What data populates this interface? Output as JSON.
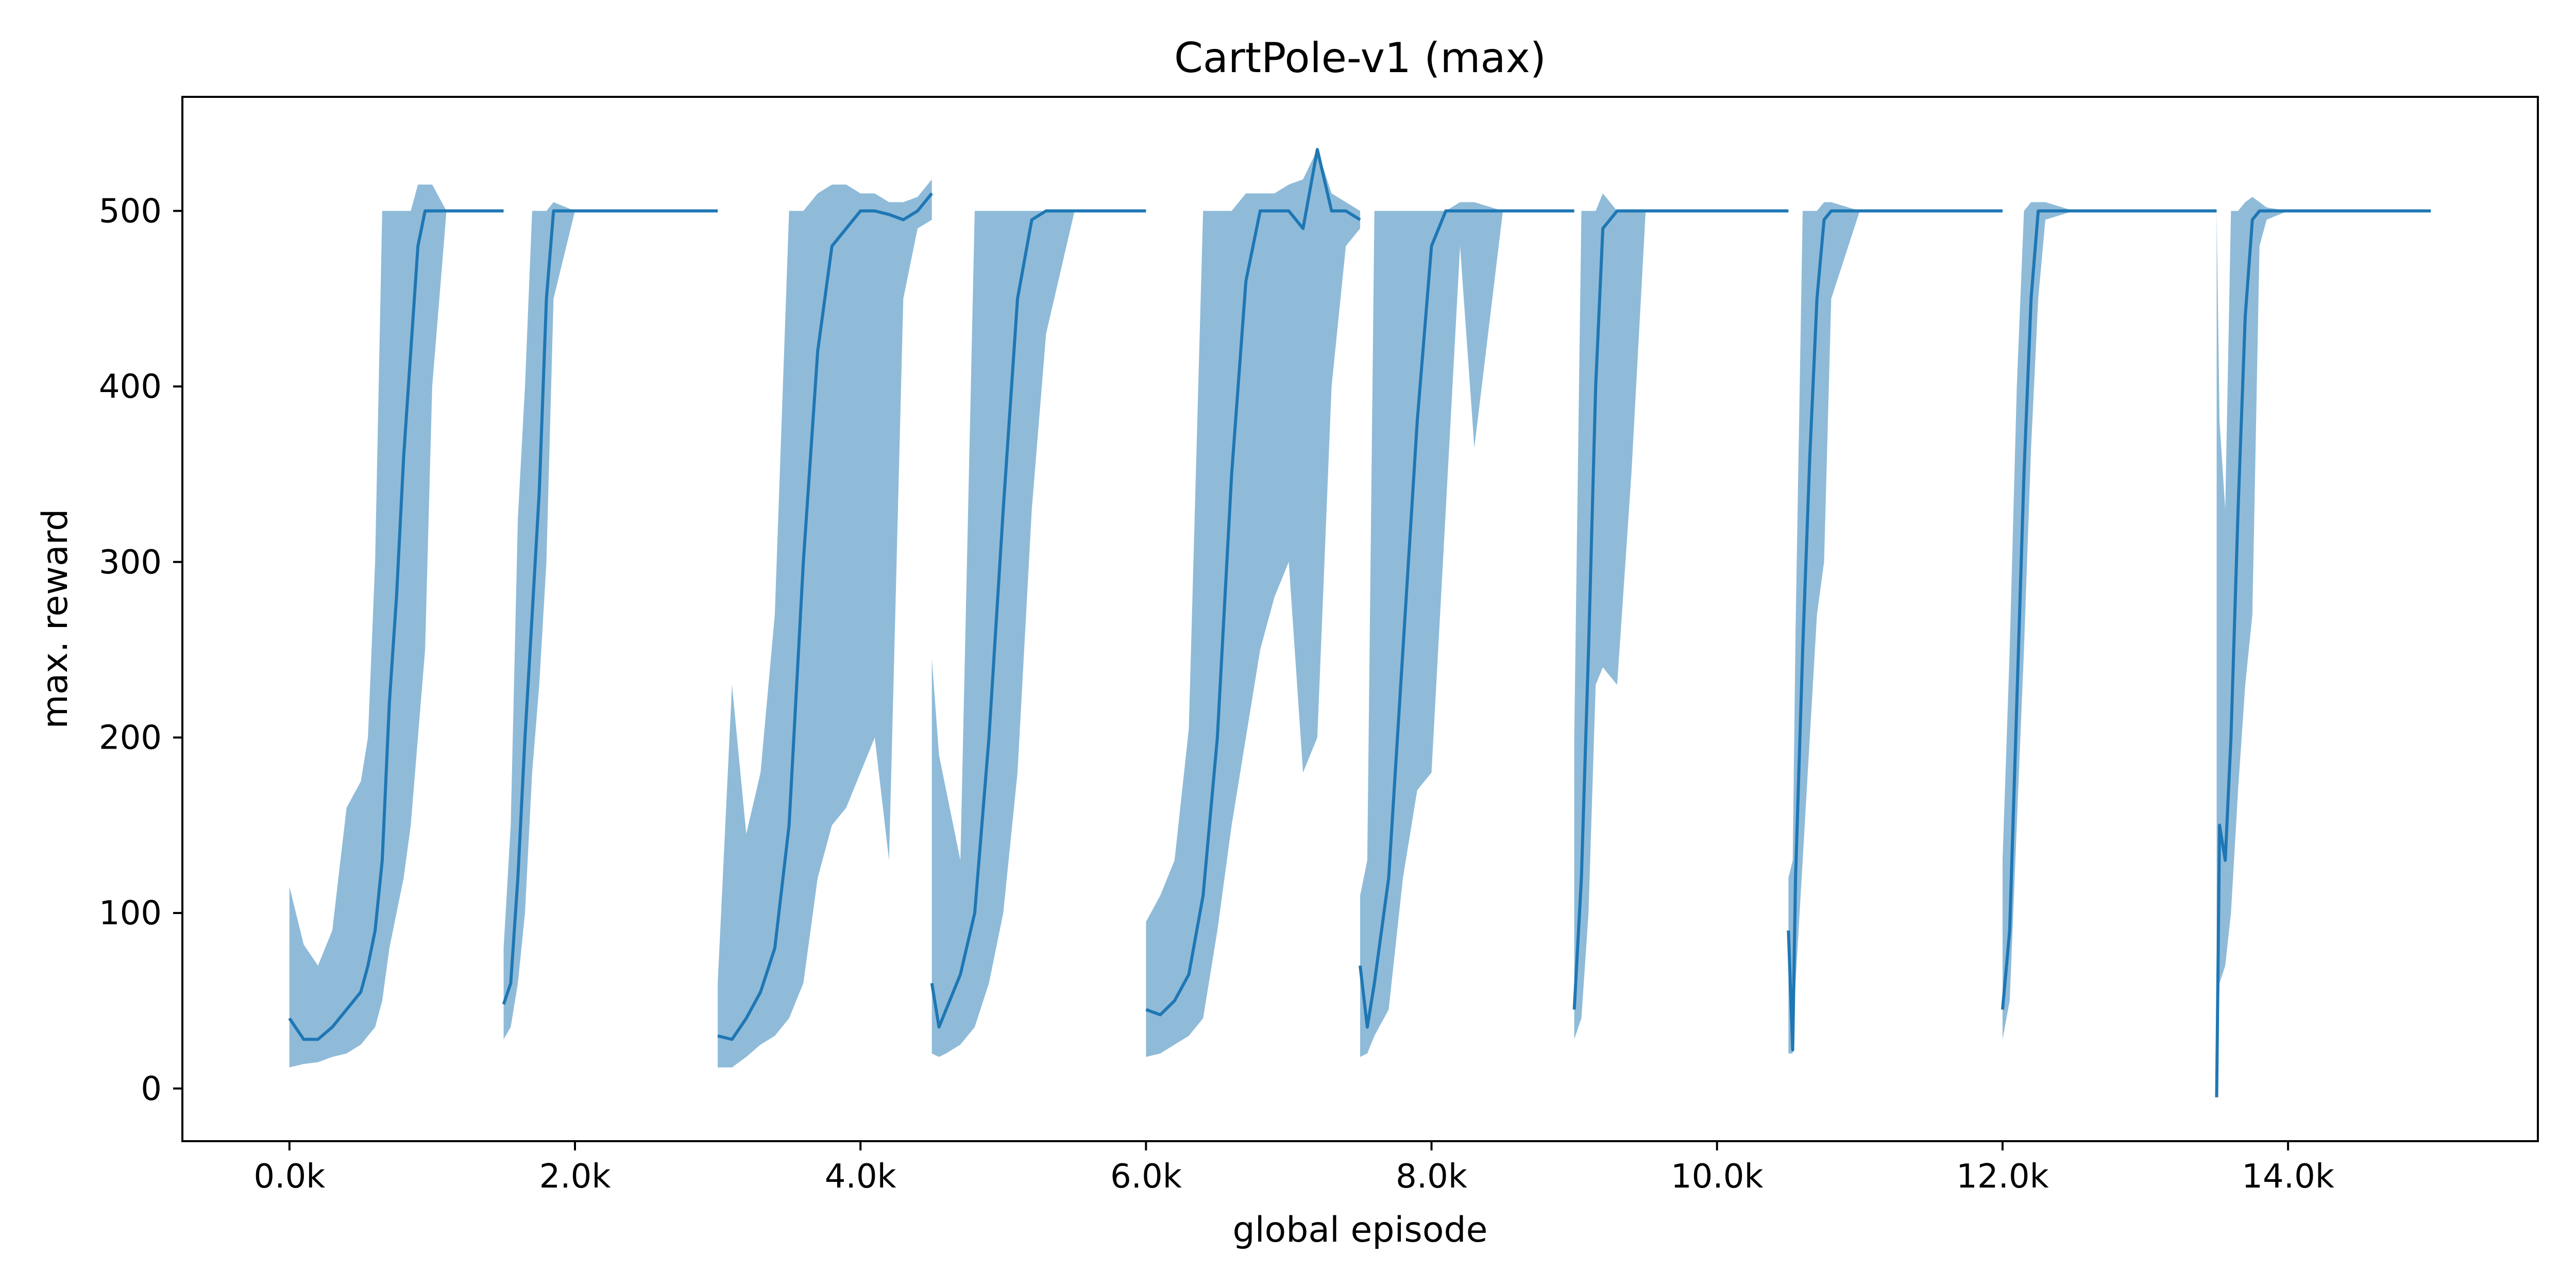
{
  "chart_data": {
    "type": "line",
    "title": "CartPole-v1 (max)",
    "xlabel": "global episode",
    "ylabel": "max. reward",
    "xlim": [
      -750,
      15750
    ],
    "ylim": [
      -30,
      565
    ],
    "grid": false,
    "legend": "none",
    "colors": {
      "series": "#1f77b4",
      "band": "#1f77b4"
    },
    "x_ticks": [
      {
        "value": 0,
        "label": "0.0k"
      },
      {
        "value": 2000,
        "label": "2.0k"
      },
      {
        "value": 4000,
        "label": "4.0k"
      },
      {
        "value": 6000,
        "label": "6.0k"
      },
      {
        "value": 8000,
        "label": "8.0k"
      },
      {
        "value": 10000,
        "label": "10.0k"
      },
      {
        "value": 12000,
        "label": "12.0k"
      },
      {
        "value": 14000,
        "label": "14.0k"
      }
    ],
    "y_ticks": [
      {
        "value": 0,
        "label": "0"
      },
      {
        "value": 100,
        "label": "100"
      },
      {
        "value": 200,
        "label": "200"
      },
      {
        "value": 300,
        "label": "300"
      },
      {
        "value": 400,
        "label": "400"
      },
      {
        "value": 500,
        "label": "500"
      }
    ],
    "segments": [
      {
        "x": [
          0,
          100,
          200,
          300,
          400,
          500,
          550,
          600,
          650,
          700,
          750,
          800,
          850,
          900,
          950,
          1000,
          1100,
          1200,
          1300,
          1500
        ],
        "y": [
          40,
          28,
          28,
          35,
          45,
          55,
          70,
          90,
          130,
          220,
          280,
          360,
          420,
          480,
          500,
          500,
          500,
          500,
          500,
          500
        ],
        "band": [
          [
            12,
            115
          ],
          [
            14,
            82
          ],
          [
            15,
            70
          ],
          [
            18,
            90
          ],
          [
            20,
            160
          ],
          [
            25,
            175
          ],
          [
            30,
            200
          ],
          [
            35,
            300
          ],
          [
            50,
            500
          ],
          [
            80,
            500
          ],
          [
            100,
            500
          ],
          [
            120,
            500
          ],
          [
            150,
            500
          ],
          [
            200,
            515
          ],
          [
            250,
            515
          ],
          [
            400,
            515
          ],
          [
            500,
            500
          ],
          [
            500,
            500
          ],
          [
            500,
            500
          ],
          [
            500,
            500
          ]
        ]
      },
      {
        "x": [
          1500,
          1550,
          1600,
          1650,
          1700,
          1750,
          1800,
          1850,
          2000,
          2500,
          3000
        ],
        "y": [
          48,
          60,
          120,
          200,
          270,
          340,
          450,
          500,
          500,
          500,
          500
        ],
        "band": [
          [
            28,
            80
          ],
          [
            35,
            150
          ],
          [
            60,
            325
          ],
          [
            100,
            400
          ],
          [
            180,
            500
          ],
          [
            230,
            500
          ],
          [
            300,
            500
          ],
          [
            450,
            505
          ],
          [
            500,
            500
          ],
          [
            500,
            500
          ],
          [
            500,
            500
          ]
        ]
      },
      {
        "x": [
          3000,
          3100,
          3200,
          3300,
          3400,
          3500,
          3600,
          3700,
          3800,
          3900,
          4000,
          4100,
          4200,
          4300,
          4400,
          4500
        ],
        "y": [
          30,
          28,
          40,
          55,
          80,
          150,
          300,
          420,
          480,
          490,
          500,
          500,
          498,
          495,
          500,
          510
        ],
        "band": [
          [
            12,
            60
          ],
          [
            12,
            230
          ],
          [
            18,
            145
          ],
          [
            25,
            180
          ],
          [
            30,
            270
          ],
          [
            40,
            500
          ],
          [
            60,
            500
          ],
          [
            120,
            510
          ],
          [
            150,
            515
          ],
          [
            160,
            515
          ],
          [
            180,
            510
          ],
          [
            200,
            510
          ],
          [
            130,
            505
          ],
          [
            450,
            505
          ],
          [
            490,
            508
          ],
          [
            495,
            518
          ]
        ]
      },
      {
        "x": [
          4500,
          4550,
          4600,
          4700,
          4800,
          4900,
          5000,
          5100,
          5200,
          5300,
          5500,
          6000
        ],
        "y": [
          60,
          35,
          45,
          65,
          100,
          200,
          330,
          450,
          495,
          500,
          500,
          500
        ],
        "band": [
          [
            20,
            245
          ],
          [
            18,
            190
          ],
          [
            20,
            170
          ],
          [
            25,
            130
          ],
          [
            35,
            500
          ],
          [
            60,
            500
          ],
          [
            100,
            500
          ],
          [
            180,
            500
          ],
          [
            330,
            500
          ],
          [
            430,
            500
          ],
          [
            500,
            500
          ],
          [
            500,
            500
          ]
        ]
      },
      {
        "x": [
          6000,
          6100,
          6200,
          6300,
          6400,
          6500,
          6600,
          6700,
          6800,
          6900,
          7000,
          7100,
          7200,
          7300,
          7400,
          7500
        ],
        "y": [
          45,
          42,
          50,
          65,
          110,
          200,
          350,
          460,
          500,
          500,
          500,
          490,
          535,
          500,
          500,
          495
        ],
        "band": [
          [
            18,
            95
          ],
          [
            20,
            110
          ],
          [
            25,
            130
          ],
          [
            30,
            205
          ],
          [
            40,
            500
          ],
          [
            90,
            500
          ],
          [
            150,
            500
          ],
          [
            200,
            510
          ],
          [
            250,
            510
          ],
          [
            280,
            510
          ],
          [
            300,
            515
          ],
          [
            180,
            518
          ],
          [
            200,
            535
          ],
          [
            400,
            510
          ],
          [
            480,
            505
          ],
          [
            490,
            500
          ]
        ]
      },
      {
        "x": [
          7500,
          7550,
          7600,
          7700,
          7800,
          7900,
          8000,
          8100,
          8200,
          8300,
          8500,
          9000
        ],
        "y": [
          70,
          35,
          60,
          120,
          250,
          380,
          480,
          500,
          500,
          500,
          500,
          500
        ],
        "band": [
          [
            18,
            110
          ],
          [
            20,
            130
          ],
          [
            30,
            500
          ],
          [
            45,
            500
          ],
          [
            120,
            500
          ],
          [
            170,
            500
          ],
          [
            180,
            500
          ],
          [
            330,
            500
          ],
          [
            480,
            505
          ],
          [
            365,
            505
          ],
          [
            500,
            500
          ],
          [
            500,
            500
          ]
        ]
      },
      {
        "x": [
          9000,
          9050,
          9100,
          9150,
          9200,
          9300,
          9400,
          9500,
          10000,
          10500
        ],
        "y": [
          45,
          120,
          250,
          400,
          490,
          500,
          500,
          500,
          500,
          500
        ],
        "band": [
          [
            28,
            200
          ],
          [
            40,
            500
          ],
          [
            100,
            500
          ],
          [
            230,
            500
          ],
          [
            240,
            510
          ],
          [
            230,
            500
          ],
          [
            350,
            500
          ],
          [
            500,
            500
          ],
          [
            500,
            500
          ],
          [
            500,
            500
          ]
        ]
      },
      {
        "x": [
          10500,
          10530,
          10550,
          10600,
          10650,
          10700,
          10750,
          10800,
          11000,
          11500,
          12000
        ],
        "y": [
          90,
          22,
          120,
          250,
          360,
          450,
          495,
          500,
          500,
          500,
          500
        ],
        "band": [
          [
            20,
            120
          ],
          [
            20,
            130
          ],
          [
            60,
            260
          ],
          [
            130,
            500
          ],
          [
            200,
            500
          ],
          [
            270,
            500
          ],
          [
            300,
            505
          ],
          [
            450,
            505
          ],
          [
            500,
            500
          ],
          [
            500,
            500
          ],
          [
            500,
            500
          ]
        ]
      },
      {
        "x": [
          12000,
          12050,
          12100,
          12150,
          12200,
          12250,
          12300,
          12500,
          13000,
          13500
        ],
        "y": [
          45,
          90,
          220,
          350,
          450,
          500,
          500,
          500,
          500,
          500
        ],
        "band": [
          [
            28,
            130
          ],
          [
            50,
            250
          ],
          [
            150,
            400
          ],
          [
            250,
            500
          ],
          [
            365,
            505
          ],
          [
            450,
            505
          ],
          [
            495,
            505
          ],
          [
            500,
            500
          ],
          [
            500,
            500
          ],
          [
            500,
            500
          ]
        ]
      },
      {
        "x": [
          13500,
          13520,
          13560,
          13600,
          13650,
          13700,
          13750,
          13800,
          13850,
          14000,
          14500,
          15000
        ],
        "y": [
          -5,
          150,
          130,
          200,
          330,
          440,
          495,
          500,
          500,
          500,
          500,
          500
        ],
        "band": [
          [
            -5,
            500
          ],
          [
            60,
            380
          ],
          [
            70,
            330
          ],
          [
            100,
            500
          ],
          [
            170,
            500
          ],
          [
            230,
            505
          ],
          [
            270,
            508
          ],
          [
            480,
            505
          ],
          [
            495,
            502
          ],
          [
            500,
            500
          ],
          [
            500,
            500
          ],
          [
            500,
            500
          ]
        ]
      }
    ]
  }
}
